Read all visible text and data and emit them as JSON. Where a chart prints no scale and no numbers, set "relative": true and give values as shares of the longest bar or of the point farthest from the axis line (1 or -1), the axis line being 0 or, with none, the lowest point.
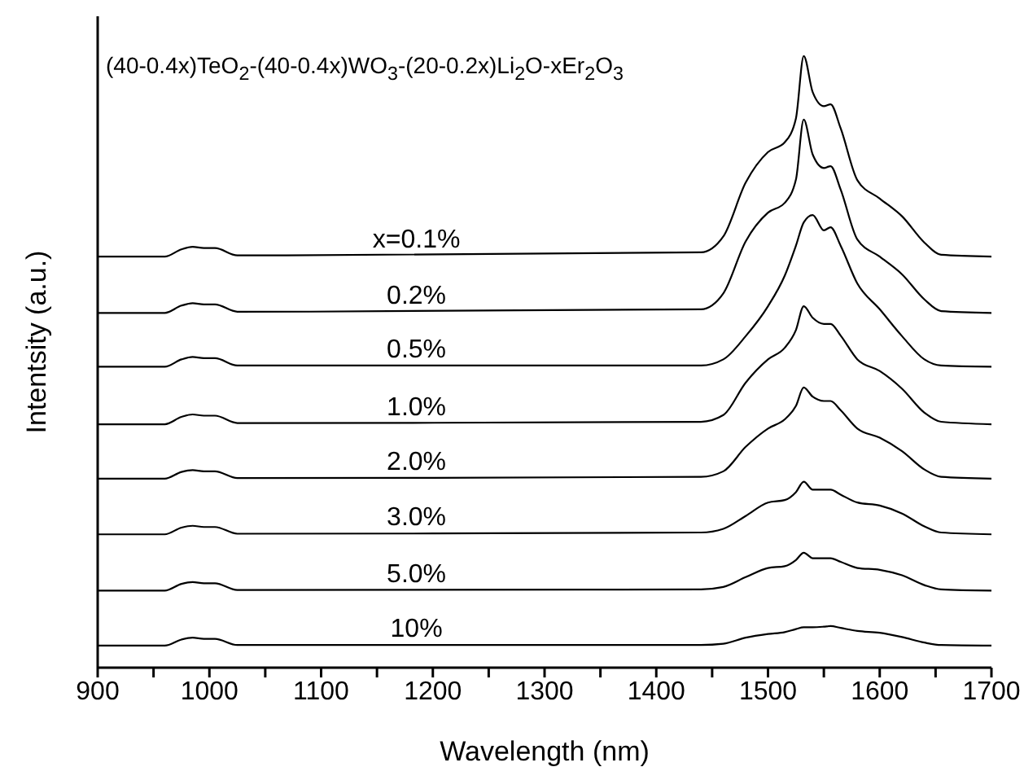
{
  "chart_data": {
    "type": "line",
    "relative": true,
    "title": "(40-0.4x)TeO$_{2}$-(40-0.4x)WO$_{3}$-(20-0.2x)Li$_{2}$O-xEr$_{2}$O$_{3}$",
    "xlabel": "Wavelength  (nm)",
    "ylabel": "Intentsity  (a.u.)",
    "marker": "none",
    "xlim": [
      900,
      1700
    ],
    "xticks": [
      900,
      {
        "value": 950,
        "label": null
      },
      1000,
      {
        "value": 1050,
        "label": null
      },
      1100,
      {
        "value": 1150,
        "label": null
      },
      1200,
      {
        "value": 1250,
        "label": null
      },
      1300,
      {
        "value": 1350,
        "label": null
      },
      1400,
      {
        "value": 1450,
        "label": null
      },
      1500,
      {
        "value": 1550,
        "label": null
      },
      1600,
      {
        "value": 1650,
        "label": null
      },
      1700
    ],
    "x": [
      900,
      960,
      975,
      985,
      995,
      1005,
      1025,
      1440,
      1460,
      1480,
      1500,
      1515,
      1525,
      1532,
      1540,
      1550,
      1556,
      1565,
      1580,
      1600,
      1620,
      1640,
      1655,
      1700
    ],
    "series": [
      {
        "name": "x=0.1%",
        "color": "#000000",
        "values": [
          0.672,
          0.672,
          0.684,
          0.688,
          0.686,
          0.686,
          0.674,
          0.679,
          0.705,
          0.793,
          0.843,
          0.859,
          0.898,
          1.0,
          0.941,
          0.918,
          0.921,
          0.882,
          0.797,
          0.767,
          0.738,
          0.695,
          0.675,
          0.672
        ]
      },
      {
        "name": "0.2%",
        "color": "#000000",
        "values": [
          0.58,
          0.58,
          0.592,
          0.596,
          0.594,
          0.594,
          0.582,
          0.586,
          0.612,
          0.697,
          0.744,
          0.76,
          0.798,
          0.896,
          0.839,
          0.817,
          0.82,
          0.782,
          0.7,
          0.672,
          0.643,
          0.602,
          0.583,
          0.58
        ]
      },
      {
        "name": "0.5%",
        "color": "#000000",
        "values": [
          0.492,
          0.492,
          0.504,
          0.508,
          0.506,
          0.506,
          0.494,
          0.494,
          0.504,
          0.542,
          0.591,
          0.641,
          0.69,
          0.728,
          0.74,
          0.715,
          0.72,
          0.69,
          0.628,
          0.586,
          0.542,
          0.504,
          0.494,
          0.492
        ]
      },
      {
        "name": "1.0%",
        "color": "#000000",
        "values": [
          0.398,
          0.398,
          0.41,
          0.414,
          0.412,
          0.412,
          0.4,
          0.402,
          0.413,
          0.466,
          0.504,
          0.523,
          0.552,
          0.591,
          0.572,
          0.562,
          0.562,
          0.543,
          0.504,
          0.485,
          0.456,
          0.417,
          0.402,
          0.398
        ]
      },
      {
        "name": "2.0%",
        "color": "#000000",
        "values": [
          0.309,
          0.309,
          0.32,
          0.323,
          0.321,
          0.321,
          0.31,
          0.312,
          0.321,
          0.361,
          0.391,
          0.406,
          0.428,
          0.458,
          0.443,
          0.436,
          0.436,
          0.421,
          0.391,
          0.376,
          0.354,
          0.324,
          0.312,
          0.309
        ]
      },
      {
        "name": "3.0%",
        "color": "#000000",
        "values": [
          0.218,
          0.218,
          0.229,
          0.232,
          0.23,
          0.23,
          0.219,
          0.221,
          0.227,
          0.248,
          0.27,
          0.274,
          0.287,
          0.304,
          0.291,
          0.291,
          0.291,
          0.283,
          0.27,
          0.265,
          0.252,
          0.231,
          0.221,
          0.218
        ]
      },
      {
        "name": "5.0%",
        "color": "#000000",
        "values": [
          0.126,
          0.126,
          0.137,
          0.14,
          0.138,
          0.138,
          0.127,
          0.128,
          0.132,
          0.148,
          0.163,
          0.166,
          0.176,
          0.188,
          0.179,
          0.179,
          0.179,
          0.173,
          0.163,
          0.16,
          0.151,
          0.135,
          0.128,
          0.126
        ]
      },
      {
        "name": "10%",
        "color": "#000000",
        "values": [
          0.036,
          0.036,
          0.046,
          0.049,
          0.047,
          0.047,
          0.037,
          0.037,
          0.039,
          0.049,
          0.055,
          0.058,
          0.063,
          0.066,
          0.066,
          0.067,
          0.068,
          0.065,
          0.06,
          0.057,
          0.05,
          0.041,
          0.037,
          0.036
        ]
      }
    ]
  }
}
